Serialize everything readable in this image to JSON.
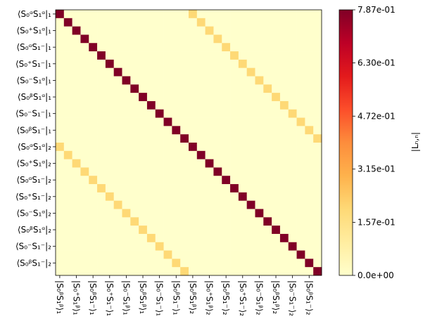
{
  "chart_data": {
    "type": "heatmap",
    "colormap": "YlOrRd",
    "row_labels": [
      "⟨S₀ᵅS₁ᵅ|₁",
      "⟨S₀⁺S₁ᵅ|₁",
      "⟨S₀ᵅS₁⁻|₁",
      "⟨S₀⁺S₁⁻|₁",
      "⟨S₀⁻S₁ᵅ|₁",
      "⟨S₀ᵝS₁ᵅ|₁",
      "⟨S₀⁻S₁⁻|₁",
      "⟨S₀ᵝS₁⁻|₁",
      "⟨S₀ᵅS₁ᵅ|₂",
      "⟨S₀⁺S₁ᵅ|₂",
      "⟨S₀ᵅS₁⁻|₂",
      "⟨S₀⁺S₁⁻|₂",
      "⟨S₀⁻S₁ᵅ|₂",
      "⟨S₀ᵝS₁ᵅ|₂",
      "⟨S₀⁻S₁⁻|₂",
      "⟨S₀ᵝS₁⁻|₂"
    ],
    "col_labels": [
      "|S₀ᵝS₁ᵝ⟩₁",
      "|S₀⁺S₁ᵝ⟩₁",
      "|S₀ᵝS₁⁻⟩₁",
      "|S₀⁺S₁⁻⟩₁",
      "|S₀⁻S₁ᵝ⟩₁",
      "|S₀ᵝS₁ᵝ⟩₁",
      "|S₀⁻S₁⁻⟩₁",
      "|S₀ᵝS₁⁻⟩₁",
      "|S₀ᵝS₁ᵝ⟩₂",
      "|S₀⁺S₁ᵝ⟩₂",
      "|S₀ᵝS₁⁻⟩₂",
      "|S₀⁺S₁⁻⟩₂",
      "|S₀⁻S₁ᵝ⟩₂",
      "|S₀ᵝS₁ᵝ⟩₂",
      "|S₀⁻S₁⁻⟩₂",
      "|S₀ᵝS₁⁻⟩₂"
    ],
    "colorbar_label": "|Lₙ,ₙ|",
    "clim": [
      0,
      0.787
    ],
    "cticks": [
      {
        "value": 0,
        "label": "0.0e+00"
      },
      {
        "value": 0.157,
        "label": "1.57e-01"
      },
      {
        "value": 0.315,
        "label": "3.15e-01"
      },
      {
        "value": 0.472,
        "label": "4.72e-01"
      },
      {
        "value": 0.63,
        "label": "6.30e-01"
      },
      {
        "value": 0.787,
        "label": "7.87e-01"
      }
    ],
    "z": [
      [
        0.787,
        0,
        0,
        0,
        0,
        0,
        0,
        0,
        0,
        0,
        0,
        0,
        0,
        0,
        0,
        0,
        0.197,
        0,
        0,
        0,
        0,
        0,
        0,
        0,
        0,
        0,
        0,
        0,
        0,
        0,
        0,
        0
      ],
      [
        0,
        0.787,
        0,
        0,
        0,
        0,
        0,
        0,
        0,
        0,
        0,
        0,
        0,
        0,
        0,
        0,
        0,
        0.197,
        0,
        0,
        0,
        0,
        0,
        0,
        0,
        0,
        0,
        0,
        0,
        0,
        0,
        0
      ],
      [
        0,
        0,
        0.787,
        0,
        0,
        0,
        0,
        0,
        0,
        0,
        0,
        0,
        0,
        0,
        0,
        0,
        0,
        0,
        0.197,
        0,
        0,
        0,
        0,
        0,
        0,
        0,
        0,
        0,
        0,
        0,
        0,
        0
      ],
      [
        0,
        0,
        0,
        0.787,
        0,
        0,
        0,
        0,
        0,
        0,
        0,
        0,
        0,
        0,
        0,
        0,
        0,
        0,
        0,
        0.197,
        0,
        0,
        0,
        0,
        0,
        0,
        0,
        0,
        0,
        0,
        0,
        0
      ],
      [
        0,
        0,
        0,
        0,
        0.787,
        0,
        0,
        0,
        0,
        0,
        0,
        0,
        0,
        0,
        0,
        0,
        0,
        0,
        0,
        0,
        0.197,
        0,
        0,
        0,
        0,
        0,
        0,
        0,
        0,
        0,
        0,
        0
      ],
      [
        0,
        0,
        0,
        0,
        0,
        0.787,
        0,
        0,
        0,
        0,
        0,
        0,
        0,
        0,
        0,
        0,
        0,
        0,
        0,
        0,
        0,
        0.197,
        0,
        0,
        0,
        0,
        0,
        0,
        0,
        0,
        0,
        0
      ],
      [
        0,
        0,
        0,
        0,
        0,
        0,
        0.787,
        0,
        0,
        0,
        0,
        0,
        0,
        0,
        0,
        0,
        0,
        0,
        0,
        0,
        0,
        0,
        0.197,
        0,
        0,
        0,
        0,
        0,
        0,
        0,
        0,
        0
      ],
      [
        0,
        0,
        0,
        0,
        0,
        0,
        0,
        0.787,
        0,
        0,
        0,
        0,
        0,
        0,
        0,
        0,
        0,
        0,
        0,
        0,
        0,
        0,
        0,
        0.197,
        0,
        0,
        0,
        0,
        0,
        0,
        0,
        0
      ],
      [
        0,
        0,
        0,
        0,
        0,
        0,
        0,
        0,
        0.787,
        0,
        0,
        0,
        0,
        0,
        0,
        0,
        0,
        0,
        0,
        0,
        0,
        0,
        0,
        0,
        0.197,
        0,
        0,
        0,
        0,
        0,
        0,
        0
      ],
      [
        0,
        0,
        0,
        0,
        0,
        0,
        0,
        0,
        0,
        0.787,
        0,
        0,
        0,
        0,
        0,
        0,
        0,
        0,
        0,
        0,
        0,
        0,
        0,
        0,
        0,
        0.197,
        0,
        0,
        0,
        0,
        0,
        0
      ],
      [
        0,
        0,
        0,
        0,
        0,
        0,
        0,
        0,
        0,
        0,
        0.787,
        0,
        0,
        0,
        0,
        0,
        0,
        0,
        0,
        0,
        0,
        0,
        0,
        0,
        0,
        0,
        0.197,
        0,
        0,
        0,
        0,
        0
      ],
      [
        0,
        0,
        0,
        0,
        0,
        0,
        0,
        0,
        0,
        0,
        0,
        0.787,
        0,
        0,
        0,
        0,
        0,
        0,
        0,
        0,
        0,
        0,
        0,
        0,
        0,
        0,
        0,
        0.197,
        0,
        0,
        0,
        0
      ],
      [
        0,
        0,
        0,
        0,
        0,
        0,
        0,
        0,
        0,
        0,
        0,
        0,
        0.787,
        0,
        0,
        0,
        0,
        0,
        0,
        0,
        0,
        0,
        0,
        0,
        0,
        0,
        0,
        0,
        0.197,
        0,
        0,
        0
      ],
      [
        0,
        0,
        0,
        0,
        0,
        0,
        0,
        0,
        0,
        0,
        0,
        0,
        0,
        0.787,
        0,
        0,
        0,
        0,
        0,
        0,
        0,
        0,
        0,
        0,
        0,
        0,
        0,
        0,
        0,
        0.197,
        0,
        0
      ],
      [
        0,
        0,
        0,
        0,
        0,
        0,
        0,
        0,
        0,
        0,
        0,
        0,
        0,
        0,
        0.787,
        0,
        0,
        0,
        0,
        0,
        0,
        0,
        0,
        0,
        0,
        0,
        0,
        0,
        0,
        0,
        0.197,
        0
      ],
      [
        0,
        0,
        0,
        0,
        0,
        0,
        0,
        0,
        0,
        0,
        0,
        0,
        0,
        0,
        0,
        0.787,
        0,
        0,
        0,
        0,
        0,
        0,
        0,
        0,
        0,
        0,
        0,
        0,
        0,
        0,
        0,
        0.197
      ],
      [
        0.197,
        0,
        0,
        0,
        0,
        0,
        0,
        0,
        0,
        0,
        0,
        0,
        0,
        0,
        0,
        0,
        0.787,
        0,
        0,
        0,
        0,
        0,
        0,
        0,
        0,
        0,
        0,
        0,
        0,
        0,
        0,
        0
      ],
      [
        0,
        0.197,
        0,
        0,
        0,
        0,
        0,
        0,
        0,
        0,
        0,
        0,
        0,
        0,
        0,
        0,
        0,
        0.787,
        0,
        0,
        0,
        0,
        0,
        0,
        0,
        0,
        0,
        0,
        0,
        0,
        0,
        0
      ],
      [
        0,
        0,
        0.197,
        0,
        0,
        0,
        0,
        0,
        0,
        0,
        0,
        0,
        0,
        0,
        0,
        0,
        0,
        0,
        0.787,
        0,
        0,
        0,
        0,
        0,
        0,
        0,
        0,
        0,
        0,
        0,
        0,
        0
      ],
      [
        0,
        0,
        0,
        0.197,
        0,
        0,
        0,
        0,
        0,
        0,
        0,
        0,
        0,
        0,
        0,
        0,
        0,
        0,
        0,
        0.787,
        0,
        0,
        0,
        0,
        0,
        0,
        0,
        0,
        0,
        0,
        0,
        0
      ],
      [
        0,
        0,
        0,
        0,
        0.197,
        0,
        0,
        0,
        0,
        0,
        0,
        0,
        0,
        0,
        0,
        0,
        0,
        0,
        0,
        0,
        0.787,
        0,
        0,
        0,
        0,
        0,
        0,
        0,
        0,
        0,
        0,
        0
      ],
      [
        0,
        0,
        0,
        0,
        0,
        0.197,
        0,
        0,
        0,
        0,
        0,
        0,
        0,
        0,
        0,
        0,
        0,
        0,
        0,
        0,
        0,
        0.787,
        0,
        0,
        0,
        0,
        0,
        0,
        0,
        0,
        0,
        0
      ],
      [
        0,
        0,
        0,
        0,
        0,
        0,
        0.197,
        0,
        0,
        0,
        0,
        0,
        0,
        0,
        0,
        0,
        0,
        0,
        0,
        0,
        0,
        0,
        0.787,
        0,
        0,
        0,
        0,
        0,
        0,
        0,
        0,
        0
      ],
      [
        0,
        0,
        0,
        0,
        0,
        0,
        0,
        0.197,
        0,
        0,
        0,
        0,
        0,
        0,
        0,
        0,
        0,
        0,
        0,
        0,
        0,
        0,
        0,
        0.787,
        0,
        0,
        0,
        0,
        0,
        0,
        0,
        0
      ],
      [
        0,
        0,
        0,
        0,
        0,
        0,
        0,
        0,
        0.197,
        0,
        0,
        0,
        0,
        0,
        0,
        0,
        0,
        0,
        0,
        0,
        0,
        0,
        0,
        0,
        0.787,
        0,
        0,
        0,
        0,
        0,
        0,
        0
      ],
      [
        0,
        0,
        0,
        0,
        0,
        0,
        0,
        0,
        0,
        0.197,
        0,
        0,
        0,
        0,
        0,
        0,
        0,
        0,
        0,
        0,
        0,
        0,
        0,
        0,
        0,
        0.787,
        0,
        0,
        0,
        0,
        0,
        0
      ],
      [
        0,
        0,
        0,
        0,
        0,
        0,
        0,
        0,
        0,
        0,
        0.197,
        0,
        0,
        0,
        0,
        0,
        0,
        0,
        0,
        0,
        0,
        0,
        0,
        0,
        0,
        0,
        0.787,
        0,
        0,
        0,
        0,
        0
      ],
      [
        0,
        0,
        0,
        0,
        0,
        0,
        0,
        0,
        0,
        0,
        0,
        0.197,
        0,
        0,
        0,
        0,
        0,
        0,
        0,
        0,
        0,
        0,
        0,
        0,
        0,
        0,
        0,
        0.787,
        0,
        0,
        0,
        0
      ],
      [
        0,
        0,
        0,
        0,
        0,
        0,
        0,
        0,
        0,
        0,
        0,
        0,
        0.197,
        0,
        0,
        0,
        0,
        0,
        0,
        0,
        0,
        0,
        0,
        0,
        0,
        0,
        0,
        0,
        0.787,
        0,
        0,
        0
      ],
      [
        0,
        0,
        0,
        0,
        0,
        0,
        0,
        0,
        0,
        0,
        0,
        0,
        0,
        0.197,
        0,
        0,
        0,
        0,
        0,
        0,
        0,
        0,
        0,
        0,
        0,
        0,
        0,
        0,
        0,
        0.787,
        0,
        0
      ],
      [
        0,
        0,
        0,
        0,
        0,
        0,
        0,
        0,
        0,
        0,
        0,
        0,
        0,
        0,
        0.197,
        0,
        0,
        0,
        0,
        0,
        0,
        0,
        0,
        0,
        0,
        0,
        0,
        0,
        0,
        0,
        0.787,
        0
      ],
      [
        0,
        0,
        0,
        0,
        0,
        0,
        0,
        0,
        0,
        0,
        0,
        0,
        0,
        0,
        0,
        0.197,
        0,
        0,
        0,
        0,
        0,
        0,
        0,
        0,
        0,
        0,
        0,
        0,
        0,
        0,
        0,
        0.787
      ]
    ]
  }
}
